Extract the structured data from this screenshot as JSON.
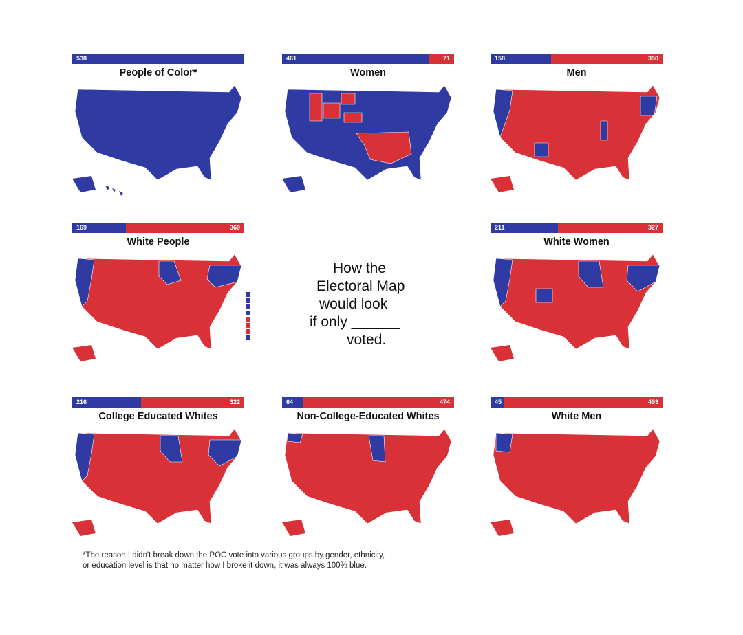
{
  "center": {
    "line1": "How the",
    "line2": "Electoral Map",
    "line3": "would look",
    "line4": "if only ______",
    "line5": "voted."
  },
  "colors": {
    "democrat": "#2f3ba3",
    "republican": "#d83137"
  },
  "panels": [
    {
      "title": "People of Color*",
      "blue": 538,
      "red": 0,
      "blue_label": "538",
      "red_label": ""
    },
    {
      "title": "Women",
      "blue": 461,
      "red": 71,
      "blue_label": "461",
      "red_label": "71"
    },
    {
      "title": "Men",
      "blue": 158,
      "red": 350,
      "blue_label": "158",
      "red_label": "350"
    },
    {
      "title": "White People",
      "blue": 169,
      "red": 369,
      "blue_label": "169",
      "red_label": "369"
    },
    {
      "title": "White Women",
      "blue": 211,
      "red": 327,
      "blue_label": "211",
      "red_label": "327"
    },
    {
      "title": "College Educated Whites",
      "blue": 216,
      "red": 322,
      "blue_label": "216",
      "red_label": "322"
    },
    {
      "title": "Non-College-Educated Whites",
      "blue": 64,
      "red": 474,
      "blue_label": "64",
      "red_label": "474"
    },
    {
      "title": "White Men",
      "blue": 45,
      "red": 493,
      "blue_label": "45",
      "red_label": "493"
    }
  ],
  "footnote": {
    "line1": "*The reason I didn't break down the POC vote into various groups by gender, ethnicity,",
    "line2": "or education level is that no matter how I broke it down, it was always 100% blue."
  }
}
